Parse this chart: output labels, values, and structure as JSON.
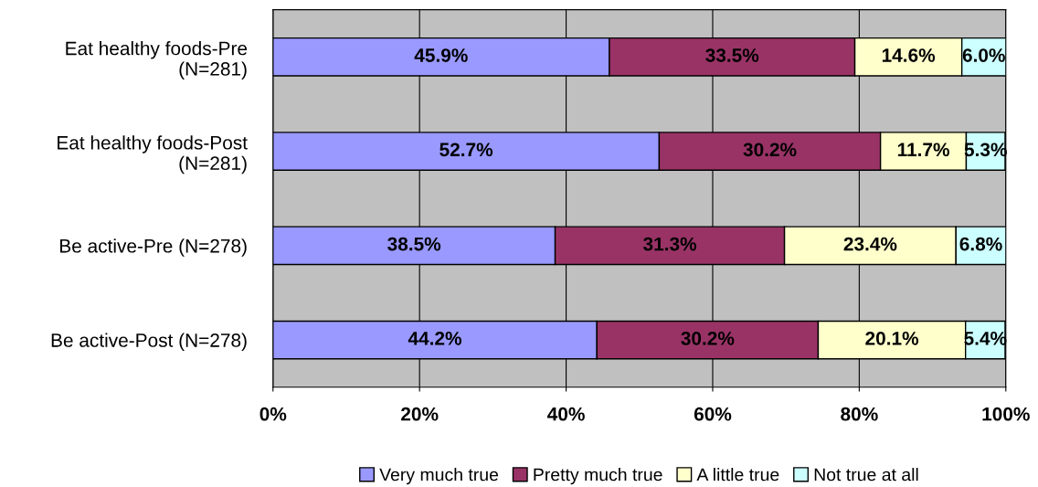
{
  "chart_data": {
    "type": "bar",
    "orientation": "horizontal",
    "stacked": true,
    "categories": [
      "Eat healthy foods-Pre\n(N=281)",
      "Eat healthy foods-Post\n(N=281)",
      "Be active-Pre (N=278)",
      "Be active-Post (N=278)"
    ],
    "series": [
      {
        "name": "Very much true",
        "color": "#9999ff",
        "values": [
          45.9,
          52.7,
          38.5,
          44.2
        ],
        "value_labels": [
          "45.9%",
          "52.7%",
          "38.5%",
          "44.2%"
        ]
      },
      {
        "name": "Pretty much true",
        "color": "#993366",
        "values": [
          33.5,
          30.2,
          31.3,
          30.2
        ],
        "value_labels": [
          "33.5%",
          "30.2%",
          "31.3%",
          "30.2%"
        ]
      },
      {
        "name": "A little true",
        "color": "#ffffcc",
        "values": [
          14.6,
          11.7,
          23.4,
          20.1
        ],
        "value_labels": [
          "14.6%",
          "11.7%",
          "23.4%",
          "20.1%"
        ]
      },
      {
        "name": "Not true at all",
        "color": "#ccffff",
        "values": [
          6.0,
          5.3,
          6.8,
          5.4
        ],
        "value_labels": [
          "6.0%",
          "5.3%",
          "6.8%",
          "5.4%"
        ]
      }
    ],
    "xlim": [
      0,
      100
    ],
    "xticks": [
      {
        "value": 0,
        "label": "0%"
      },
      {
        "value": 20,
        "label": "20%"
      },
      {
        "value": 40,
        "label": "40%"
      },
      {
        "value": 60,
        "label": "60%"
      },
      {
        "value": 80,
        "label": "80%"
      },
      {
        "value": 100,
        "label": "100%"
      }
    ],
    "grid": "x",
    "legend": "bottom"
  }
}
